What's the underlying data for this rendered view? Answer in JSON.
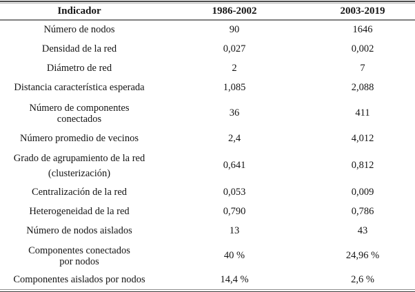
{
  "table": {
    "columns": [
      "Indicador",
      "1986-2002",
      "2003-2019"
    ],
    "rows": [
      {
        "label": "Número de nodos",
        "v1": "90",
        "v2": "1646"
      },
      {
        "label": "Densidad de la red",
        "v1": "0,027",
        "v2": "0,002"
      },
      {
        "label": "Diámetro de red",
        "v1": "2",
        "v2": "7"
      },
      {
        "label": "Distancia característica esperada",
        "v1": "1,085",
        "v2": "2,088"
      },
      {
        "l1": "Número de componentes",
        "l2": "conectados",
        "v1": "36",
        "v2": "411"
      },
      {
        "label": "Número promedio de vecinos",
        "v1": "2,4",
        "v2": "4,012"
      },
      {
        "l1": "Grado de agrupamiento de la red",
        "l2": "(clusterización)",
        "v1": "0,641",
        "v2": "0,812"
      },
      {
        "label": "Centralización de la red",
        "v1": "0,053",
        "v2": "0,009"
      },
      {
        "label": "Heterogeneidad de la red",
        "v1": "0,790",
        "v2": "0,786"
      },
      {
        "label": "Número de nodos aislados",
        "v1": "13",
        "v2": "43"
      },
      {
        "l1": "Componentes conectados",
        "l2": "por nodos",
        "v1": "40 %",
        "v2": "24,96 %"
      },
      {
        "label": "Componentes aislados por nodos",
        "v1": "14,4 %",
        "v2": "2,6 %"
      }
    ]
  },
  "colors": {
    "text": "#141414",
    "top_rule": "#4a4a4a",
    "header_separator": "#7f7f7f",
    "bottom_rule_thin": "#8c8c8c",
    "bottom_rule_thick": "#3c3c3c"
  }
}
